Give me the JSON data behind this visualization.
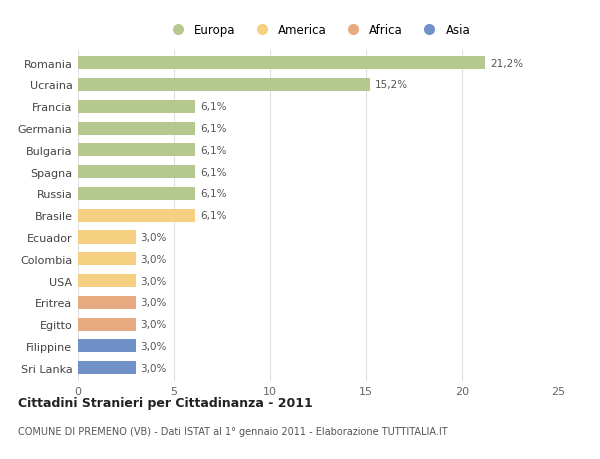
{
  "countries": [
    "Romania",
    "Ucraina",
    "Francia",
    "Germania",
    "Bulgaria",
    "Spagna",
    "Russia",
    "Brasile",
    "Ecuador",
    "Colombia",
    "USA",
    "Eritrea",
    "Egitto",
    "Filippine",
    "Sri Lanka"
  ],
  "values": [
    21.2,
    15.2,
    6.1,
    6.1,
    6.1,
    6.1,
    6.1,
    6.1,
    3.0,
    3.0,
    3.0,
    3.0,
    3.0,
    3.0,
    3.0
  ],
  "labels": [
    "21,2%",
    "15,2%",
    "6,1%",
    "6,1%",
    "6,1%",
    "6,1%",
    "6,1%",
    "6,1%",
    "3,0%",
    "3,0%",
    "3,0%",
    "3,0%",
    "3,0%",
    "3,0%",
    "3,0%"
  ],
  "colors": [
    "#b5c98e",
    "#b5c98e",
    "#b5c98e",
    "#b5c98e",
    "#b5c98e",
    "#b5c98e",
    "#b5c98e",
    "#f5d080",
    "#f5d080",
    "#f5d080",
    "#f5d080",
    "#e8aa80",
    "#e8aa80",
    "#7090c8",
    "#7090c8"
  ],
  "categories": [
    "Europa",
    "America",
    "Africa",
    "Asia"
  ],
  "legend_colors": [
    "#b5c98e",
    "#f5d080",
    "#e8aa80",
    "#7090c8"
  ],
  "xlim": [
    0,
    25
  ],
  "xticks": [
    0,
    5,
    10,
    15,
    20,
    25
  ],
  "title": "Cittadini Stranieri per Cittadinanza - 2011",
  "subtitle": "COMUNE DI PREMENO (VB) - Dati ISTAT al 1° gennaio 2011 - Elaborazione TUTTITALIA.IT",
  "background_color": "#ffffff",
  "grid_color": "#e0e0e0"
}
